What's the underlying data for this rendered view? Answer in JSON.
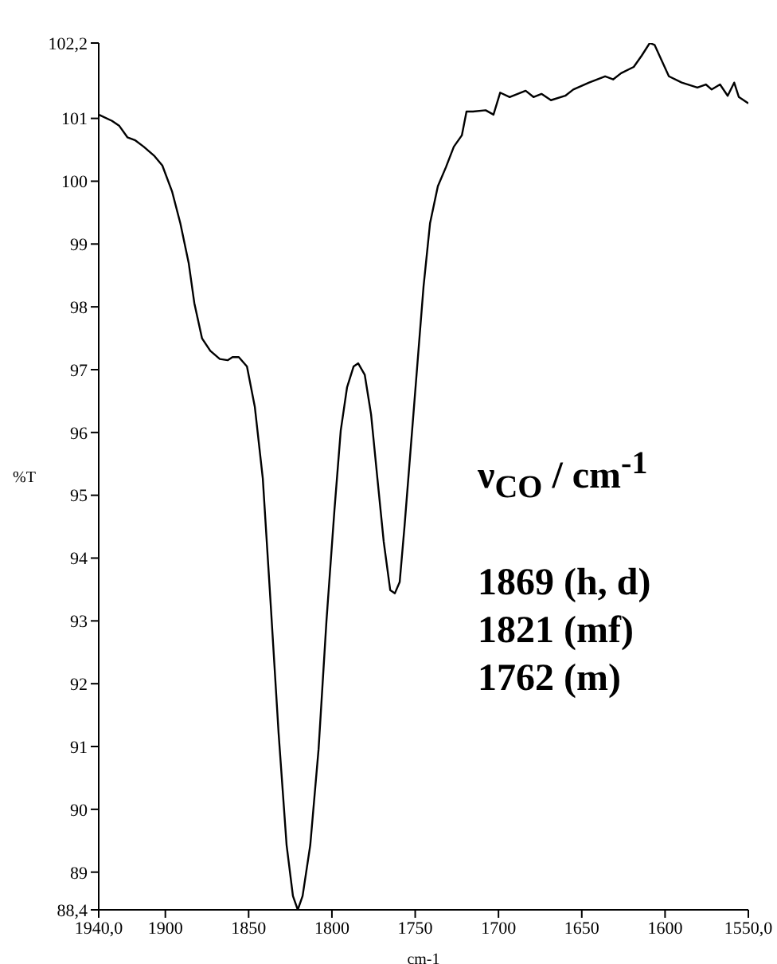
{
  "chart_data": {
    "type": "line",
    "xlabel": "cm-1",
    "ylabel": "%T",
    "xlim": [
      1940,
      1550
    ],
    "xticks": [
      {
        "value": 1940,
        "label": "1940,0"
      },
      1900,
      1850,
      1800,
      1750,
      1700,
      1650,
      1600,
      {
        "value": 1550,
        "label": "1550,0"
      }
    ],
    "ylim": [
      88.4,
      102.2
    ],
    "yticks": [
      {
        "value": 88.4,
        "label": "88,4"
      },
      89,
      90,
      91,
      92,
      93,
      94,
      95,
      96,
      97,
      98,
      99,
      100,
      101,
      {
        "value": 102.2,
        "label": "102,2"
      }
    ],
    "annotations": [
      "ν$_{CO}$ / cm$^{-1}$",
      "1869 (h, d)",
      "1821 (mf)",
      "1762 (m)"
    ],
    "series": [
      {
        "color": "#000000",
        "x": [
          1940,
          1932,
          1927.6,
          1922.8,
          1918,
          1913,
          1906.5,
          1901.8,
          1896,
          1891,
          1886,
          1882.6,
          1878,
          1873,
          1867.3,
          1862.6,
          1859.7,
          1855.9,
          1851,
          1846.3,
          1841.5,
          1836.7,
          1832,
          1827.2,
          1823.4,
          1820.5,
          1817.6,
          1813,
          1808,
          1803.3,
          1798.5,
          1794.7,
          1790.9,
          1787,
          1784.2,
          1780.3,
          1776.5,
          1772.7,
          1768.9,
          1765,
          1762.2,
          1759.3,
          1756.4,
          1752.6,
          1748.8,
          1745,
          1741.1,
          1736.4,
          1731.6,
          1726.8,
          1722,
          1719.2,
          1715.3,
          1707.7,
          1703,
          1699,
          1693.3,
          1683.7,
          1679,
          1674.2,
          1668.5,
          1659.9,
          1655.1,
          1645.6,
          1636,
          1631.2,
          1626.4,
          1618.8,
          1614,
          1609.2,
          1606.3,
          1602.5,
          1597.7,
          1590,
          1580.6,
          1575.5,
          1572,
          1567,
          1562.4,
          1558.5,
          1555.7,
          1550
        ],
        "values": [
          101.06,
          100.96,
          100.88,
          100.7,
          100.65,
          100.55,
          100.4,
          100.25,
          99.84,
          99.33,
          98.7,
          98.06,
          97.5,
          97.3,
          97.17,
          97.15,
          97.2,
          97.2,
          97.05,
          96.41,
          95.27,
          93.24,
          91.21,
          89.43,
          88.62,
          88.4,
          88.62,
          89.43,
          90.96,
          92.99,
          94.76,
          96.03,
          96.72,
          97.05,
          97.1,
          96.92,
          96.29,
          95.27,
          94.26,
          93.49,
          93.44,
          93.62,
          94.51,
          95.78,
          97.05,
          98.32,
          99.33,
          99.92,
          100.22,
          100.55,
          100.73,
          101.11,
          101.11,
          101.13,
          101.06,
          101.41,
          101.34,
          101.44,
          101.34,
          101.39,
          101.29,
          101.36,
          101.46,
          101.57,
          101.67,
          101.62,
          101.72,
          101.82,
          102.0,
          102.2,
          102.17,
          101.95,
          101.67,
          101.57,
          101.49,
          101.54,
          101.46,
          101.54,
          101.36,
          101.57,
          101.34,
          101.24
        ]
      }
    ]
  }
}
